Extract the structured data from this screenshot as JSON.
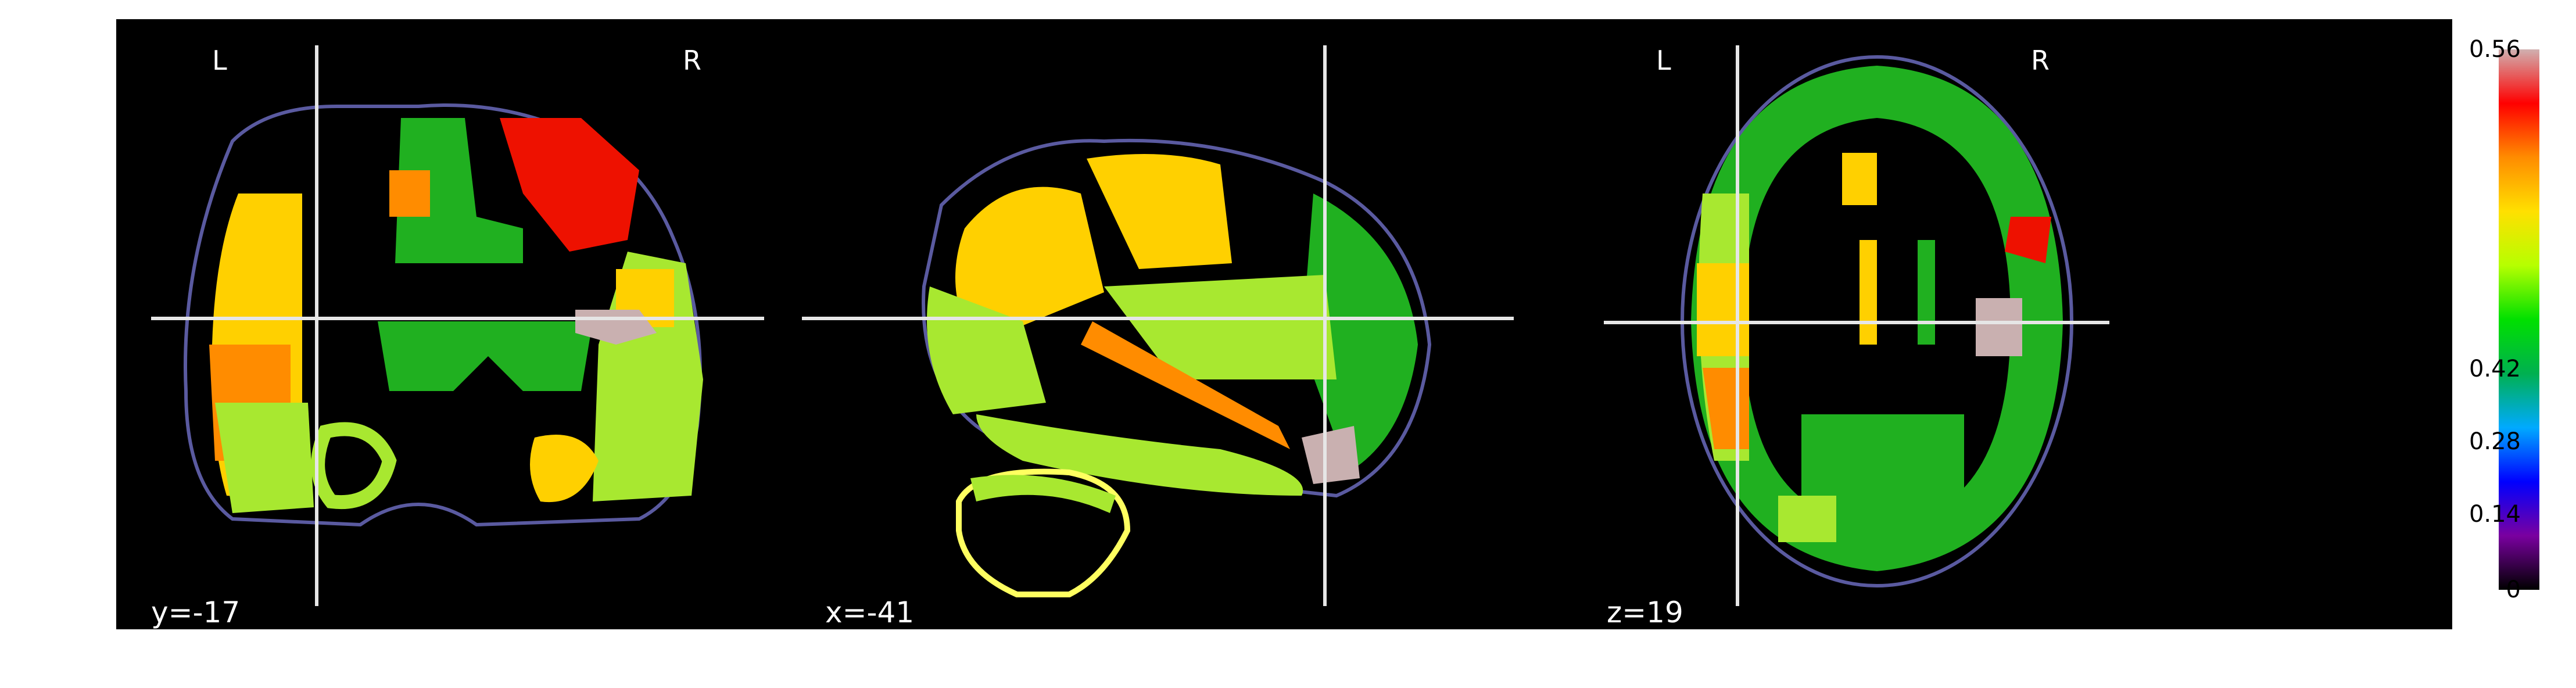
{
  "views": [
    {
      "id": "coronal",
      "left_label": "L",
      "right_label": "R",
      "coord_label": "y=-17"
    },
    {
      "id": "sagittal",
      "coord_label": "x=-41"
    },
    {
      "id": "axial",
      "left_label": "L",
      "right_label": "R",
      "coord_label": "z=19"
    }
  ],
  "colorbar": {
    "min": 0,
    "max": 0.56,
    "ticks": [
      "0.56",
      "0.42",
      "0.28",
      "0.14",
      "0"
    ],
    "tick_values": [
      0.56,
      0.42,
      0.28,
      0.14,
      0
    ],
    "colormap": [
      "#000000",
      "#7a00a0",
      "#0000ff",
      "#00aaff",
      "#00b050",
      "#00e000",
      "#b6ff00",
      "#ffe000",
      "#ff8c00",
      "#ff0000",
      "#d0b0b0"
    ]
  },
  "colors": {
    "background": "#000000",
    "crosshair": "#e6e6e6",
    "outline": "#5a5aa0",
    "green": "#20b020",
    "light-green": "#a8e830",
    "yellow": "#ffd000",
    "orange": "#ff8c00",
    "red": "#ee1100",
    "pink": "#c9b0b0"
  }
}
